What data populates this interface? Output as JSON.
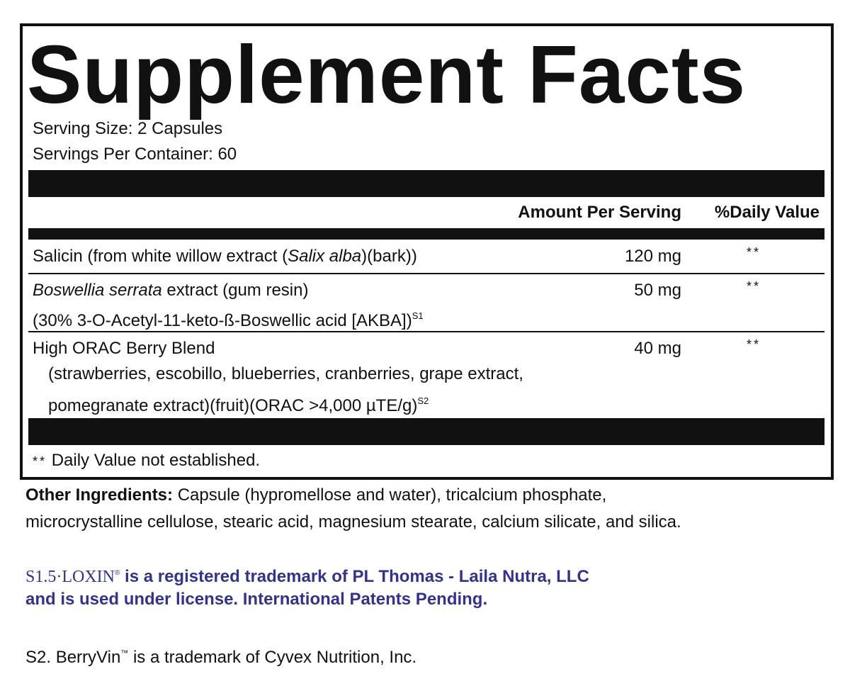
{
  "label": {
    "title": "Supplement Facts",
    "serving_size": "Serving Size: 2 Capsules",
    "servings_per_container": "Servings Per Container: 60",
    "header": {
      "amount": "Amount Per Serving",
      "daily_value": "%Daily Value"
    },
    "rows": [
      {
        "lines": [
          [
            "Salicin (from white willow extract (",
            "Salix alba",
            ")(bark))"
          ]
        ],
        "amount": "120 mg",
        "daily_value": "**"
      },
      {
        "lines": [
          [
            "Boswellia serrata",
            " extract (gum resin)"
          ],
          [
            "(30% 3-O-Acetyl-11-keto-ß-Boswellic acid [AKBA])",
            "S1"
          ]
        ],
        "amount": "50 mg",
        "daily_value": "**"
      },
      {
        "lines": [
          [
            "High ORAC Berry Blend"
          ],
          [
            "(strawberries, escobillo, blueberries, cranberries, grape extract,"
          ],
          [
            "pomegranate extract)(fruit)(ORAC >4,000 µTE/g)",
            "S2"
          ]
        ],
        "amount": "40 mg",
        "daily_value": "**"
      }
    ],
    "footnote": {
      "symbol": "**",
      "text": "Daily Value not established."
    }
  },
  "other_ingredients": {
    "label": "Other Ingredients:",
    "text_line1": " Capsule (hypromellose and water), tricalcium phosphate,",
    "text_line2": "microcrystalline cellulose, stearic acid, magnesium stearate, calcium silicate, and silica."
  },
  "notes": {
    "s1": {
      "prefix": "S1.",
      "logo": "5·LOXIN",
      "mark": "®",
      "line1": " is a registered trademark of PL Thomas - Laila Nutra, LLC",
      "line2": "and is used under license. International Patents Pending."
    },
    "s2": {
      "prefix": "S2. BerryVin",
      "mark": "™",
      "text": " is a trademark of Cyvex Nutrition, Inc."
    }
  }
}
